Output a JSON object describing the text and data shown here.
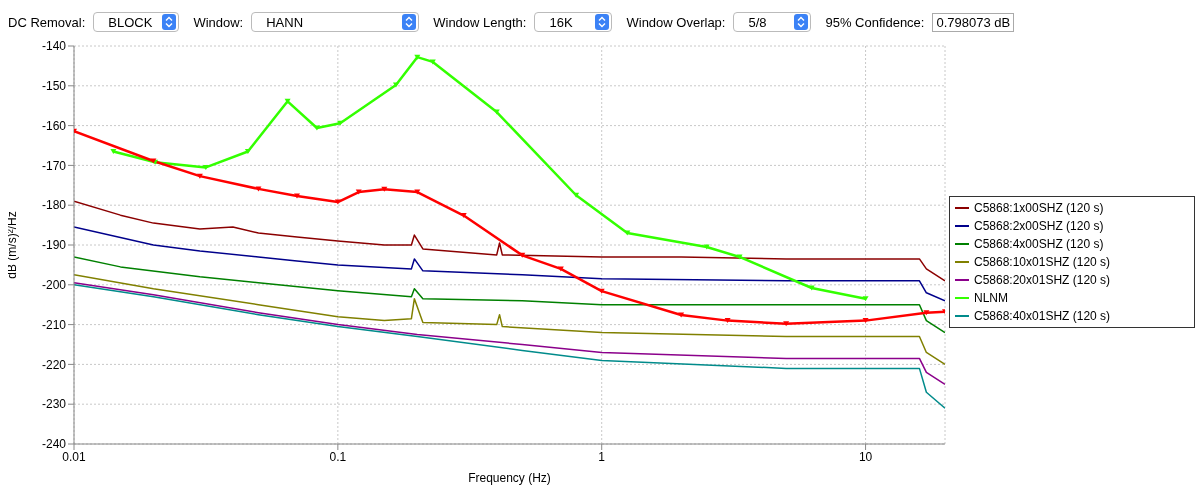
{
  "chart_data": {
    "type": "line",
    "xlabel": "Frequency (Hz)",
    "ylabel": "dB (m/s)²/Hz",
    "log": "x",
    "xlim": [
      0.01,
      20
    ],
    "xticks": [
      0.01,
      0.1,
      1,
      10
    ],
    "ylim": [
      -240,
      -140
    ],
    "yticks": [
      -240,
      -230,
      -220,
      -210,
      -200,
      -190,
      -180,
      -170,
      -160,
      -150,
      -140
    ],
    "grid": true,
    "legend": "right",
    "marker": "none",
    "line_style": "solid",
    "annotations": [
      "DC Removal:",
      "BLOCK",
      "Window:",
      "HANN",
      "Window Length:",
      "16K",
      "Window Overlap:",
      "5/8",
      "95% Confidence:",
      "0.798073 dB"
    ],
    "series": [
      {
        "name": "C5868:1x00SHZ (120 s)",
        "color": "#8b0000",
        "x": [
          0.01,
          0.015,
          0.02,
          0.03,
          0.04,
          0.05,
          0.07,
          0.1,
          0.15,
          0.19,
          0.195,
          0.21,
          0.4,
          0.41,
          0.42,
          1,
          2,
          5,
          10,
          16,
          17,
          20
        ],
        "values": [
          -179,
          -182.5,
          -184.5,
          -186,
          -185.5,
          -187,
          -188,
          -189,
          -190,
          -190,
          -187.5,
          -191,
          -192.5,
          -189.5,
          -192.5,
          -193,
          -193,
          -193.5,
          -193.5,
          -193.5,
          -196,
          -199
        ]
      },
      {
        "name": "C5868:2x00SHZ (120 s)",
        "color": "#00008b",
        "x": [
          0.01,
          0.02,
          0.03,
          0.05,
          0.07,
          0.1,
          0.19,
          0.195,
          0.21,
          0.5,
          1,
          5,
          16,
          17,
          20
        ],
        "values": [
          -185.5,
          -190,
          -191.5,
          -193,
          -194,
          -195,
          -196,
          -193.5,
          -196.5,
          -197.5,
          -198.5,
          -199,
          -199,
          -202,
          -204
        ]
      },
      {
        "name": "C5868:4x00SHZ (120 s)",
        "color": "#008000",
        "x": [
          0.01,
          0.015,
          0.03,
          0.05,
          0.1,
          0.19,
          0.195,
          0.21,
          0.5,
          1,
          5,
          16,
          17,
          20
        ],
        "values": [
          -193,
          -195.5,
          -198,
          -199.5,
          -201.5,
          -203,
          -201,
          -203.5,
          -204,
          -205,
          -205,
          -205,
          -209,
          -212
        ]
      },
      {
        "name": "C5868:10x01SHZ (120 s)",
        "color": "#808000",
        "x": [
          0.01,
          0.02,
          0.05,
          0.1,
          0.15,
          0.19,
          0.195,
          0.21,
          0.4,
          0.41,
          0.42,
          1,
          5,
          16,
          17,
          20
        ],
        "values": [
          -197.5,
          -201,
          -205,
          -208,
          -209,
          -208.5,
          -203.5,
          -209.5,
          -210,
          -207.5,
          -210.5,
          -212,
          -213,
          -213,
          -217,
          -220
        ]
      },
      {
        "name": "C5868:20x01SHZ (120 s)",
        "color": "#8b008b",
        "x": [
          0.01,
          0.02,
          0.05,
          0.1,
          0.2,
          0.5,
          1,
          5,
          16,
          17,
          20
        ],
        "values": [
          -199.5,
          -202.5,
          -207,
          -210,
          -212.5,
          -215,
          -217,
          -218.5,
          -218.5,
          -222,
          -225
        ]
      },
      {
        "name": "NLNM",
        "color": "#33ff00",
        "marker": "triangle",
        "x": [
          0.0141,
          0.0203,
          0.0316,
          0.0456,
          0.0645,
          0.0833,
          0.102,
          0.166,
          0.2,
          0.229,
          0.4,
          0.8,
          1.25,
          2.5,
          3.33,
          6.25,
          10
        ],
        "values": [
          -166.5,
          -169.2,
          -170.5,
          -166.5,
          -153.9,
          -160.6,
          -159.4,
          -149.8,
          -142.8,
          -144,
          -156.6,
          -177.5,
          -187,
          -190.5,
          -193,
          -200.8,
          -203.5
        ]
      },
      {
        "name": "C5868:40x01SHZ (120 s)",
        "color": "#008b8b",
        "x": [
          0.01,
          0.02,
          0.05,
          0.1,
          0.2,
          0.5,
          1,
          5,
          16,
          17,
          20
        ],
        "values": [
          -200,
          -203,
          -207.5,
          -210.5,
          -213,
          -216.5,
          -219,
          -221,
          -221,
          -227,
          -231
        ]
      },
      {
        "color": "#ff0000",
        "marker": "triangle",
        "x": [
          0.01,
          0.02,
          0.03,
          0.05,
          0.07,
          0.1,
          0.12,
          0.15,
          0.2,
          0.3,
          0.5,
          0.7,
          1,
          2,
          3,
          5,
          10,
          17,
          20
        ],
        "values": [
          -161.4,
          -168.9,
          -172.7,
          -175.9,
          -177.7,
          -179.2,
          -176.7,
          -176,
          -176.7,
          -182.6,
          -192.6,
          -196,
          -201.6,
          -207.6,
          -209,
          -209.8,
          -209,
          -207,
          -206.8
        ]
      }
    ]
  }
}
